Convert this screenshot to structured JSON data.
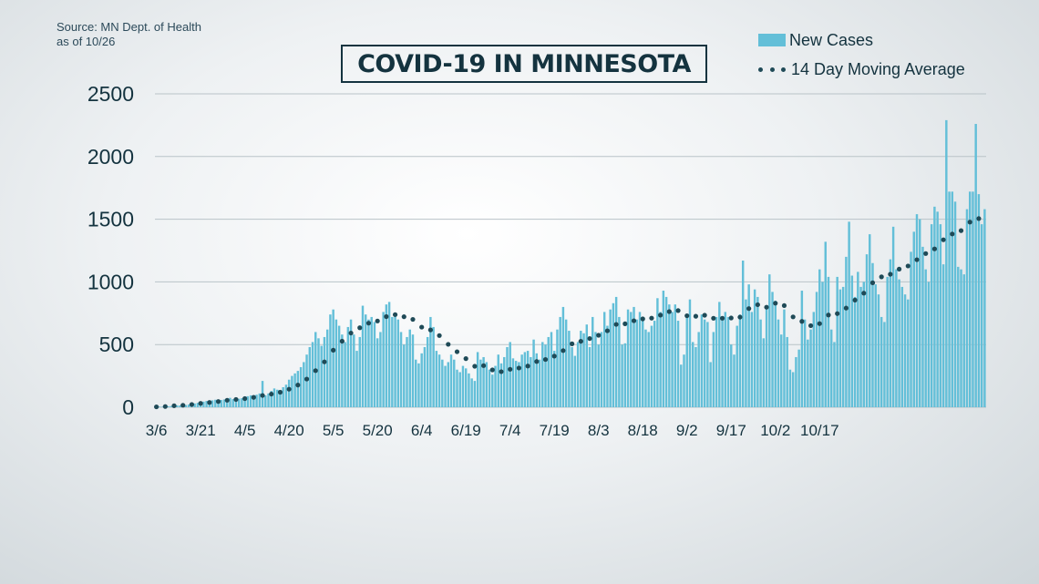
{
  "source": {
    "line1": "Source: MN Dept. of Health",
    "line2": "as of 10/26"
  },
  "title": "COVID-19 IN MINNESOTA",
  "colors": {
    "bars": "#63bfd8",
    "moving_average": "#1f4a57",
    "text": "#14333f",
    "grid": "#b9c3c8"
  },
  "chart_data": {
    "type": "bar",
    "title": "COVID-19 IN MINNESOTA",
    "xlabel": "",
    "ylabel": "",
    "ylim": [
      0,
      2500
    ],
    "yticks": [
      0,
      500,
      1000,
      1500,
      2000,
      2500
    ],
    "grid": true,
    "legend_position": "top-right",
    "start_date": "3/6",
    "x_tick_labels": [
      "3/6",
      "3/21",
      "4/5",
      "4/20",
      "5/5",
      "5/20",
      "6/4",
      "6/19",
      "7/4",
      "7/19",
      "8/3",
      "8/18",
      "9/2",
      "9/17",
      "10/2",
      "10/17"
    ],
    "series": [
      {
        "name": "New Cases",
        "type": "bar",
        "values": [
          3,
          5,
          4,
          6,
          8,
          10,
          12,
          15,
          14,
          12,
          18,
          22,
          25,
          30,
          35,
          40,
          45,
          50,
          30,
          55,
          60,
          48,
          58,
          62,
          70,
          75,
          65,
          55,
          68,
          72,
          80,
          88,
          95,
          90,
          100,
          110,
          210,
          95,
          110,
          130,
          150,
          140,
          125,
          160,
          180,
          220,
          250,
          270,
          290,
          320,
          360,
          420,
          480,
          520,
          600,
          550,
          490,
          560,
          620,
          740,
          780,
          700,
          650,
          580,
          520,
          640,
          700,
          580,
          450,
          560,
          810,
          740,
          700,
          720,
          680,
          550,
          600,
          760,
          820,
          840,
          720,
          750,
          700,
          600,
          500,
          560,
          620,
          580,
          380,
          350,
          430,
          480,
          560,
          720,
          640,
          450,
          420,
          380,
          330,
          360,
          420,
          380,
          300,
          280,
          330,
          310,
          270,
          230,
          210,
          440,
          380,
          400,
          360,
          300,
          260,
          330,
          420,
          350,
          400,
          480,
          520,
          390,
          370,
          360,
          420,
          440,
          450,
          400,
          540,
          430,
          380,
          520,
          500,
          560,
          600,
          450,
          620,
          720,
          800,
          700,
          610,
          480,
          410,
          520,
          610,
          590,
          660,
          480,
          720,
          600,
          500,
          600,
          760,
          650,
          780,
          830,
          880,
          720,
          500,
          510,
          780,
          760,
          800,
          700,
          760,
          720,
          620,
          600,
          650,
          690,
          870,
          760,
          930,
          880,
          820,
          760,
          820,
          690,
          340,
          420,
          740,
          860,
          520,
          480,
          600,
          740,
          700,
          680,
          360,
          600,
          720,
          840,
          700,
          760,
          720,
          500,
          420,
          650,
          740,
          1170,
          860,
          980,
          760,
          940,
          880,
          700,
          550,
          800,
          1060,
          920,
          850,
          700,
          580,
          780,
          560,
          300,
          280,
          400,
          460,
          930,
          700,
          540,
          620,
          760,
          920,
          1100,
          1000,
          1320,
          1040,
          620,
          520,
          1040,
          940,
          960,
          1200,
          1480,
          1050,
          880,
          1080,
          960,
          1000,
          1220,
          1380,
          1150,
          980,
          900,
          720,
          680,
          1040,
          1180,
          1440,
          1100,
          1020,
          960,
          900,
          860,
          1240,
          1400,
          1540,
          1500,
          1280,
          1100,
          1000,
          1460,
          1600,
          1560,
          1460,
          1140,
          2290,
          1720,
          1720,
          1640,
          1120,
          1100,
          1060,
          1580,
          1720,
          1720,
          2260,
          1700,
          1460,
          1580
        ]
      },
      {
        "name": "14 Day Moving Average",
        "type": "line",
        "style": "dotted",
        "values": [
          3,
          4,
          5,
          6,
          8,
          10,
          12,
          14,
          15,
          16,
          18,
          20,
          22,
          25,
          28,
          31,
          34,
          37,
          38,
          41,
          44,
          46,
          49,
          52,
          56,
          59,
          61,
          62,
          64,
          66,
          69,
          72,
          76,
          79,
          82,
          87,
          94,
          96,
          99,
          105,
          111,
          116,
          120,
          127,
          135,
          144,
          154,
          165,
          177,
          191,
          207,
          225,
          245,
          266,
          292,
          316,
          338,
          362,
          389,
          422,
          455,
          480,
          505,
          527,
          547,
          569,
          592,
          614,
          623,
          634,
          652,
          664,
          671,
          683,
          688,
          688,
          694,
          708,
          723,
          734,
          741,
          739,
          738,
          732,
          722,
          712,
          705,
          701,
          681,
          658,
          639,
          624,
          614,
          617,
          612,
          593,
          572,
          547,
          522,
          502,
          487,
          466,
          443,
          421,
          403,
          388,
          369,
          347,
          327,
          331,
          330,
          332,
          326,
          315,
          298,
          283,
          285,
          284,
          286,
          291,
          303,
          304,
          309,
          313,
          317,
          322,
          329,
          338,
          352,
          365,
          374,
          376,
          381,
          386,
          398,
          408,
          420,
          432,
          452,
          474,
          494,
          506,
          512,
          521,
          526,
          536,
          540,
          548,
          557,
          566,
          574,
          586,
          601,
          610,
          623,
          642,
          661,
          666,
          666,
          666,
          675,
          682,
          690,
          695,
          701,
          705,
          707,
          710,
          711,
          714,
          727,
          735,
          744,
          756,
          763,
          767,
          775,
          771,
          750,
          734,
          730,
          736,
          734,
          726,
          730,
          735,
          734,
          734,
          716,
          710,
          708,
          714,
          710,
          710,
          712,
          712,
          709,
          713,
          719,
          753,
          766,
          787,
          797,
          812,
          818,
          817,
          799,
          798,
          817,
          829,
          830,
          828,
          821,
          811,
          791,
          753,
          721,
          694,
          674,
          685,
          672,
          661,
          651,
          652,
          653,
          667,
          679,
          728,
          736,
          738,
          730,
          747,
          768,
          781,
          791,
          831,
          847,
          855,
          872,
          895,
          910,
          923,
          952,
          993,
          1014,
          1037,
          1040,
          1045,
          1044,
          1061,
          1077,
          1084,
          1102,
          1112,
          1124,
          1127,
          1144,
          1164,
          1177,
          1193,
          1207,
          1226,
          1242,
          1255,
          1263,
          1277,
          1301,
          1336,
          1357,
          1371,
          1382,
          1372,
          1382,
          1409,
          1436,
          1452,
          1477,
          1530,
          1517,
          1505,
          1509
        ]
      }
    ]
  }
}
